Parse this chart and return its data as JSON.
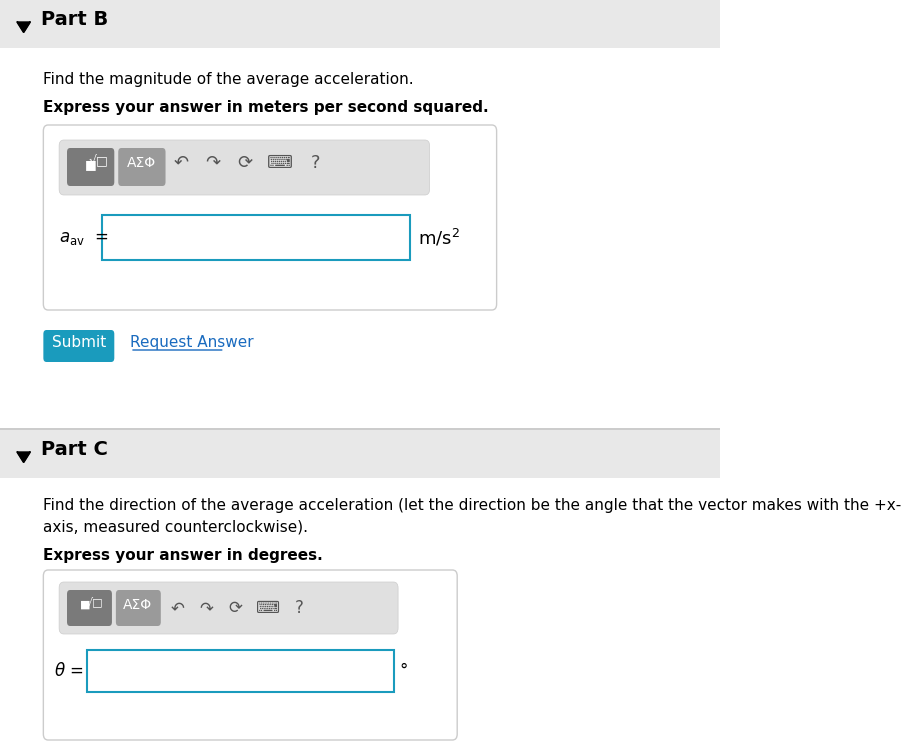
{
  "bg_color": "#ffffff",
  "header_bg": "#e8e8e8",
  "part_b_title": "Part B",
  "part_b_desc": "Find the magnitude of the average acceleration.",
  "part_b_bold": "Express your answer in meters per second squared.",
  "part_b_label": "$a_{\\mathrm{av}}$  =",
  "part_b_unit": "m/s²",
  "part_c_title": "Part C",
  "part_c_desc": "Find the direction of the average acceleration (let the direction be the angle that the vector makes with the +x-\naxis, measured counterclockwise).",
  "part_c_bold": "Express your answer in degrees.",
  "part_c_label": "θ =",
  "part_c_unit": "°",
  "submit_color": "#1a9bbd",
  "submit_text": "Submit",
  "request_text": "Request Answer",
  "request_color": "#1a6bbf",
  "toolbar_bg": "#7a7a7a",
  "toolbar_btn1": "■√□",
  "toolbar_btn2": "AΣΦ",
  "input_border": "#1a9bbd",
  "figsize": [
    9.13,
    7.47
  ],
  "dpi": 100
}
